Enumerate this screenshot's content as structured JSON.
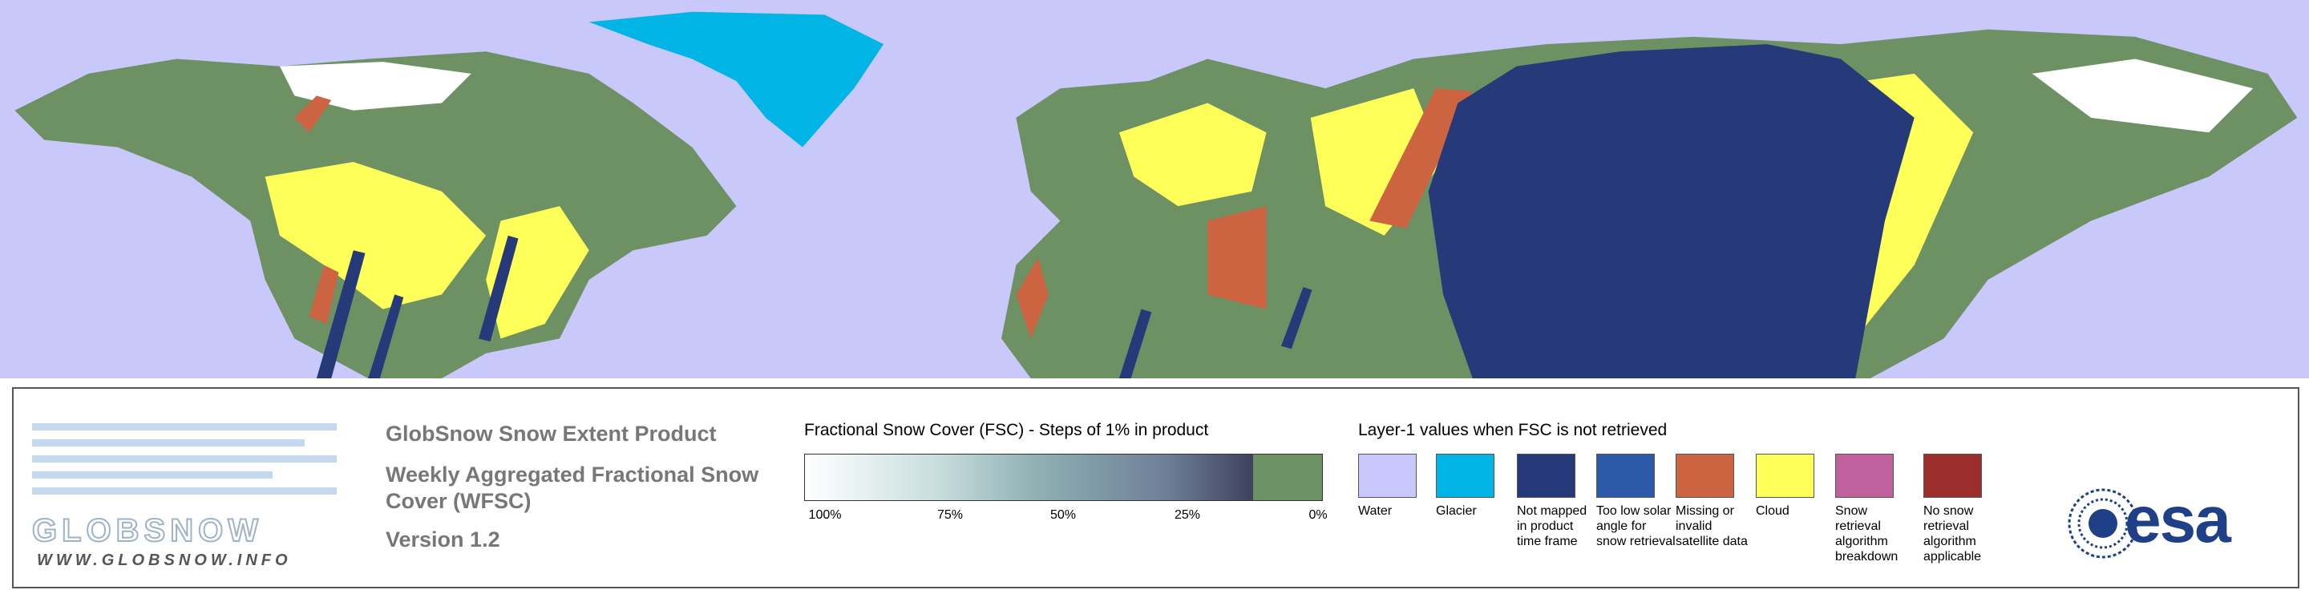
{
  "logo": {
    "word": "GLOBSNOW",
    "url": "WWW.GLOBSNOW.INFO"
  },
  "title": "GlobSnow Snow Extent Product",
  "subtitle": "Weekly Aggregated Fractional Snow Cover (WFSC)",
  "version": "Version 1.2",
  "colorbar": {
    "title": "Fractional Snow Cover (FSC) - Steps of 1% in product",
    "ticks": [
      "100%",
      "75%",
      "50%",
      "25%",
      "0%"
    ]
  },
  "layer1": {
    "title": "Layer-1 values when FSC is not retrieved",
    "items": [
      {
        "label": "Water",
        "color": "#c8c8ff"
      },
      {
        "label": "Glacier",
        "color": "#00b4e6"
      },
      {
        "label": "Not mapped in product time frame",
        "color": "#263a7a"
      },
      {
        "label": "Too low solar angle for snow retrieval",
        "color": "#2c5aa8"
      },
      {
        "label": "Missing or invalid satellite data",
        "color": "#cd6441"
      },
      {
        "label": "Cloud",
        "color": "#ffff5a"
      },
      {
        "label": "Snow retrieval algorithm breakdown",
        "color": "#c0609c"
      },
      {
        "label": "No snow retrieval algorithm applicable",
        "color": "#9b2d2d"
      }
    ]
  },
  "esa_logo": "esa"
}
